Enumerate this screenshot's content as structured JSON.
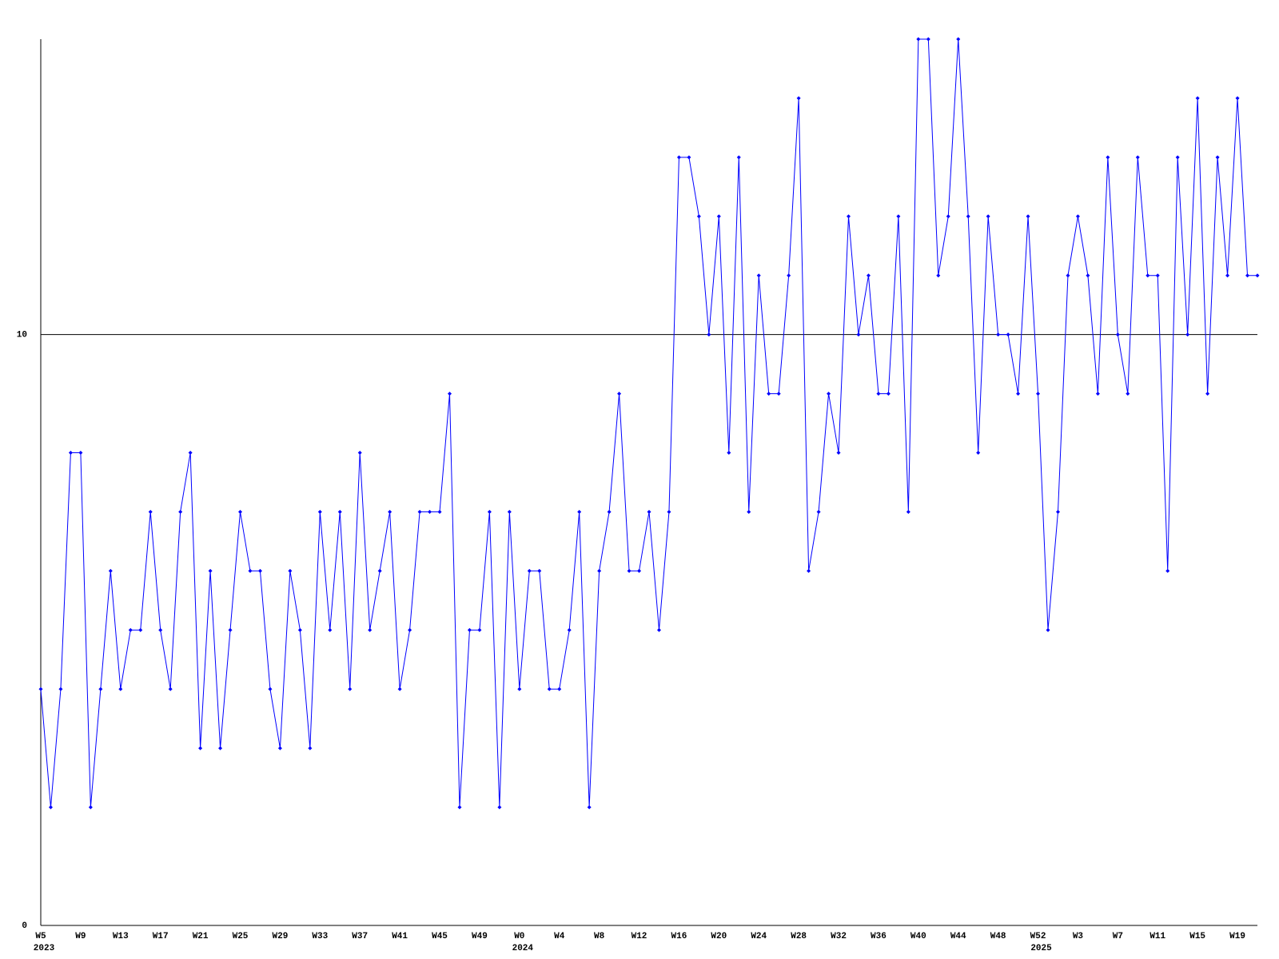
{
  "chart_data": {
    "type": "line",
    "categories": [
      "W5",
      null,
      null,
      null,
      "W9",
      null,
      null,
      null,
      "W13",
      null,
      null,
      null,
      "W17",
      null,
      null,
      null,
      "W21",
      null,
      null,
      null,
      "W25",
      null,
      null,
      null,
      "W29",
      null,
      null,
      null,
      "W33",
      null,
      null,
      null,
      "W37",
      null,
      null,
      null,
      "W41",
      null,
      null,
      null,
      "W45",
      null,
      null,
      null,
      "W49",
      null,
      null,
      null,
      "W0",
      null,
      null,
      null,
      "W4",
      null,
      null,
      null,
      "W8",
      null,
      null,
      null,
      "W12",
      null,
      null,
      null,
      "W16",
      null,
      null,
      null,
      "W20",
      null,
      null,
      null,
      "W24",
      null,
      null,
      null,
      "W28",
      null,
      null,
      null,
      "W32",
      null,
      null,
      null,
      "W36",
      null,
      null,
      null,
      "W40",
      null,
      null,
      null,
      "W44",
      null,
      null,
      null,
      "W48",
      null,
      null,
      null,
      "W52",
      null,
      null,
      null,
      "W3",
      null,
      null,
      null,
      "W7",
      null,
      null,
      null,
      "W11",
      null,
      null,
      null,
      "W15",
      null,
      null,
      null,
      "W19",
      null,
      null
    ],
    "years": [
      "2023",
      null,
      null,
      null,
      null,
      null,
      null,
      null,
      null,
      null,
      null,
      null,
      null,
      null,
      null,
      null,
      null,
      null,
      null,
      null,
      null,
      null,
      null,
      null,
      null,
      null,
      null,
      null,
      null,
      null,
      null,
      null,
      null,
      null,
      null,
      null,
      null,
      null,
      null,
      null,
      null,
      null,
      null,
      null,
      null,
      null,
      null,
      null,
      "2024",
      null,
      null,
      null,
      null,
      null,
      null,
      null,
      null,
      null,
      null,
      null,
      null,
      null,
      null,
      null,
      null,
      null,
      null,
      null,
      null,
      null,
      null,
      null,
      null,
      null,
      null,
      null,
      null,
      null,
      null,
      null,
      null,
      null,
      null,
      null,
      null,
      null,
      null,
      null,
      null,
      null,
      null,
      null,
      null,
      null,
      null,
      null,
      null,
      null,
      null,
      null,
      "2025",
      null,
      null,
      null,
      null,
      null,
      null,
      null,
      null,
      null,
      null,
      null,
      null,
      null,
      null,
      null,
      null,
      null,
      null,
      null,
      null,
      null,
      null
    ],
    "series": [
      {
        "color": "#0000ff",
        "values": [
          4,
          2,
          4,
          8,
          8,
          2,
          4,
          6,
          4,
          5,
          5,
          7,
          5,
          4,
          7,
          8,
          3,
          6,
          3,
          5,
          7,
          6,
          6,
          4,
          3,
          6,
          5,
          3,
          7,
          5,
          7,
          4,
          8,
          5,
          6,
          7,
          4,
          5,
          7,
          7,
          7,
          9,
          2,
          5,
          5,
          7,
          2,
          7,
          4,
          6,
          6,
          4,
          4,
          5,
          7,
          2,
          6,
          7,
          9,
          6,
          6,
          7,
          5,
          7,
          13,
          13,
          12,
          10,
          12,
          8,
          13,
          7,
          11,
          9,
          9,
          11,
          14,
          6,
          7,
          9,
          8,
          12,
          10,
          11,
          9,
          9,
          12,
          7,
          15,
          15,
          11,
          12,
          15,
          12,
          8,
          12,
          10,
          10,
          9,
          12,
          9,
          5,
          7,
          11,
          12,
          11,
          9,
          13,
          10,
          9,
          13,
          11,
          11,
          6,
          13,
          10,
          14,
          9,
          13,
          11,
          14,
          11,
          11
        ]
      }
    ],
    "ylim": [
      0,
      15
    ],
    "yticks": [
      0,
      10
    ],
    "grid": true
  }
}
